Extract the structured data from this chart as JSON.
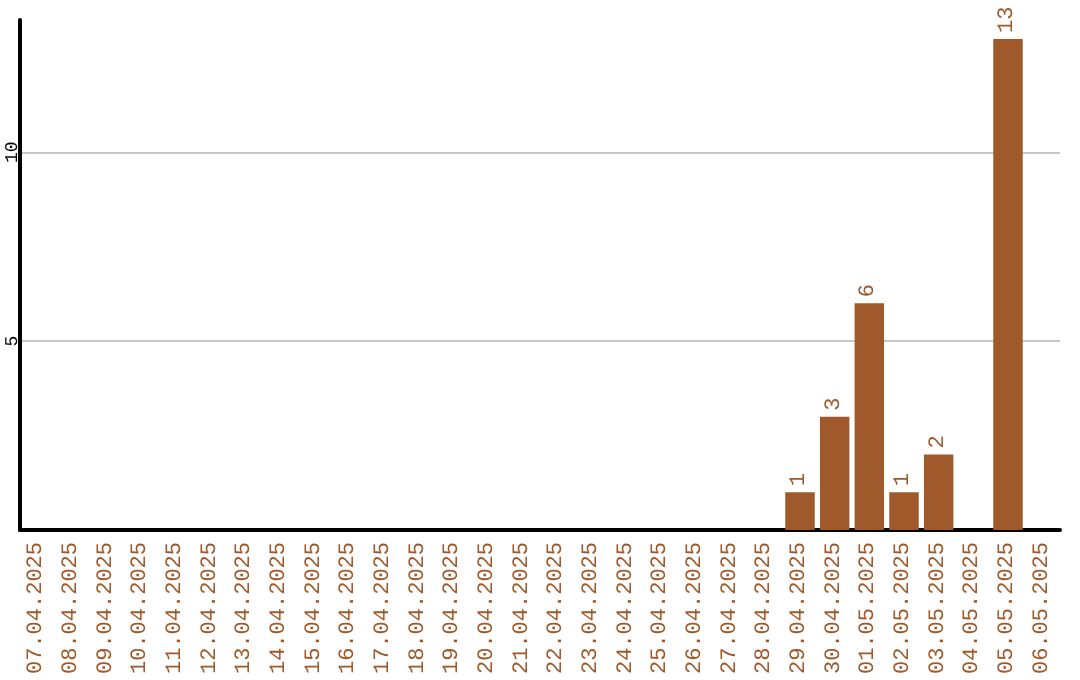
{
  "chart_data": {
    "type": "bar",
    "categories": [
      "07.04.2025",
      "08.04.2025",
      "09.04.2025",
      "10.04.2025",
      "11.04.2025",
      "12.04.2025",
      "13.04.2025",
      "14.04.2025",
      "15.04.2025",
      "16.04.2025",
      "17.04.2025",
      "18.04.2025",
      "19.04.2025",
      "20.04.2025",
      "21.04.2025",
      "22.04.2025",
      "23.04.2025",
      "24.04.2025",
      "25.04.2025",
      "26.04.2025",
      "27.04.2025",
      "28.04.2025",
      "29.04.2025",
      "30.04.2025",
      "01.05.2025",
      "02.05.2025",
      "03.05.2025",
      "04.05.2025",
      "05.05.2025",
      "06.05.2025"
    ],
    "values": [
      0,
      0,
      0,
      0,
      0,
      0,
      0,
      0,
      0,
      0,
      0,
      0,
      0,
      0,
      0,
      0,
      0,
      0,
      0,
      0,
      0,
      0,
      1,
      3,
      6,
      1,
      2,
      0,
      13,
      0
    ],
    "value_labels": [
      null,
      null,
      null,
      null,
      null,
      null,
      null,
      null,
      null,
      null,
      null,
      null,
      null,
      null,
      null,
      null,
      null,
      null,
      null,
      null,
      null,
      null,
      "1",
      "3",
      "6",
      "1",
      "2",
      null,
      "13",
      null
    ],
    "color": "#a0592a",
    "ylim": [
      0,
      13.5
    ],
    "yticks": [
      5,
      10
    ],
    "grid": "y"
  }
}
